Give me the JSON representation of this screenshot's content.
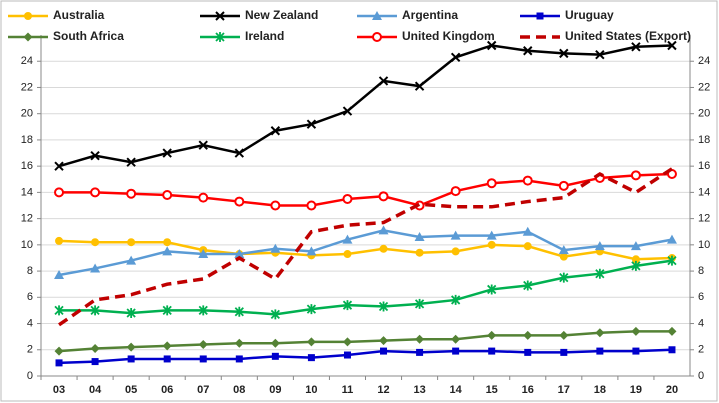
{
  "chart_data": {
    "type": "line",
    "categories": [
      "03",
      "04",
      "05",
      "06",
      "07",
      "08",
      "09",
      "10",
      "11",
      "12",
      "13",
      "14",
      "15",
      "16",
      "17",
      "18",
      "19",
      "20"
    ],
    "ylim": [
      0,
      26
    ],
    "yticks": [
      0,
      2,
      4,
      6,
      8,
      10,
      12,
      14,
      16,
      18,
      20,
      22,
      24
    ],
    "grid": true,
    "series": [
      {
        "name": "Australia",
        "color": "#ffc000",
        "marker": "circle",
        "values": [
          10.3,
          10.2,
          10.2,
          10.2,
          9.6,
          9.3,
          9.4,
          9.2,
          9.3,
          9.7,
          9.4,
          9.5,
          10.0,
          9.9,
          9.1,
          9.5,
          8.9,
          9.0
        ]
      },
      {
        "name": "New Zealand",
        "color": "#000000",
        "marker": "x",
        "values": [
          16.0,
          16.8,
          16.3,
          17.0,
          17.6,
          17.0,
          18.7,
          19.2,
          20.2,
          22.5,
          22.1,
          24.3,
          25.2,
          24.8,
          24.6,
          24.5,
          25.1,
          25.2
        ]
      },
      {
        "name": "Argentina",
        "color": "#5b9bd5",
        "marker": "triangle",
        "values": [
          7.7,
          8.2,
          8.8,
          9.5,
          9.3,
          9.3,
          9.7,
          9.5,
          10.4,
          11.1,
          10.6,
          10.7,
          10.7,
          11.0,
          9.6,
          9.9,
          9.9,
          10.4
        ]
      },
      {
        "name": "Uruguay",
        "color": "#0000cc",
        "marker": "square",
        "values": [
          1.0,
          1.1,
          1.3,
          1.3,
          1.3,
          1.3,
          1.5,
          1.4,
          1.6,
          1.9,
          1.8,
          1.9,
          1.9,
          1.8,
          1.8,
          1.9,
          1.9,
          2.0
        ]
      },
      {
        "name": "South Africa",
        "color": "#548235",
        "marker": "diamond",
        "values": [
          1.9,
          2.1,
          2.2,
          2.3,
          2.4,
          2.5,
          2.5,
          2.6,
          2.6,
          2.7,
          2.8,
          2.8,
          3.1,
          3.1,
          3.1,
          3.3,
          3.4,
          3.4
        ]
      },
      {
        "name": "Ireland",
        "color": "#00b050",
        "marker": "star",
        "values": [
          5.0,
          5.0,
          4.8,
          5.0,
          5.0,
          4.9,
          4.7,
          5.1,
          5.4,
          5.3,
          5.5,
          5.8,
          6.6,
          6.9,
          7.5,
          7.8,
          8.4,
          8.8
        ]
      },
      {
        "name": "United Kingdom",
        "color": "#ff0000",
        "marker": "open-circle",
        "values": [
          14.0,
          14.0,
          13.9,
          13.8,
          13.6,
          13.3,
          13.0,
          13.0,
          13.5,
          13.7,
          13.0,
          14.1,
          14.7,
          14.9,
          14.5,
          15.1,
          15.3,
          15.4
        ]
      },
      {
        "name": "United States (Export)",
        "color": "#c00000",
        "marker": "none",
        "dash": true,
        "values": [
          3.9,
          5.8,
          6.2,
          7.0,
          7.4,
          9.0,
          7.4,
          11.0,
          11.5,
          11.7,
          13.1,
          12.9,
          12.9,
          13.3,
          13.6,
          15.4,
          14.0,
          15.8
        ]
      }
    ]
  }
}
